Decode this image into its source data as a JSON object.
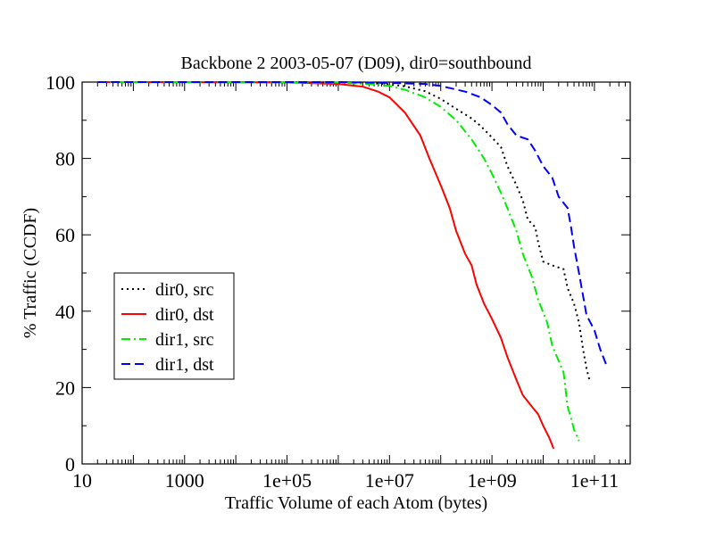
{
  "chart_data": {
    "type": "line",
    "title": "Backbone 2 2003-05-07 (D09), dir0=southbound",
    "xlabel": "Traffic Volume of each Atom (bytes)",
    "ylabel": "% Traffic (CCDF)",
    "x_scale": "log",
    "xlim": [
      10,
      500000000000
    ],
    "ylim": [
      0,
      100
    ],
    "x_ticks": [
      "10",
      "1000",
      "1e+05",
      "1e+07",
      "1e+09",
      "1e+11"
    ],
    "y_ticks": [
      "0",
      "20",
      "40",
      "60",
      "80",
      "100"
    ],
    "grid": false,
    "legend_position": "left-middle",
    "series": [
      {
        "name": "dir0, src",
        "color": "#000000",
        "style": "dotted",
        "points": [
          [
            20,
            100
          ],
          [
            100000.0,
            100
          ],
          [
            1000000.0,
            99.9
          ],
          [
            5000000.0,
            99.7
          ],
          [
            10000000.0,
            99.4
          ],
          [
            20000000.0,
            98.9
          ],
          [
            50000000.0,
            97.6
          ],
          [
            100000000.0,
            95.6
          ],
          [
            200000000.0,
            93
          ],
          [
            400000000.0,
            90.5
          ],
          [
            600000000.0,
            88.5
          ],
          [
            1000000000.0,
            85.5
          ],
          [
            1500000000.0,
            83
          ],
          [
            2000000000.0,
            78
          ],
          [
            3000000000.0,
            73
          ],
          [
            4000000000.0,
            69
          ],
          [
            5000000000.0,
            64
          ],
          [
            7000000000.0,
            62
          ],
          [
            8000000000.0,
            58
          ],
          [
            10000000000.0,
            53
          ],
          [
            15000000000.0,
            52
          ],
          [
            25000000000.0,
            51
          ],
          [
            30000000000.0,
            46
          ],
          [
            40000000000.0,
            42
          ],
          [
            50000000000.0,
            37
          ],
          [
            60000000000.0,
            30
          ],
          [
            70000000000.0,
            25
          ],
          [
            80000000000.0,
            22
          ]
        ]
      },
      {
        "name": "dir0, dst",
        "color": "#ff0000",
        "style": "solid",
        "points": [
          [
            20,
            100
          ],
          [
            100000.0,
            99.9
          ],
          [
            1000000.0,
            99.5
          ],
          [
            3000000.0,
            98.8
          ],
          [
            6000000.0,
            97.5
          ],
          [
            10000000.0,
            96
          ],
          [
            20000000.0,
            92
          ],
          [
            40000000.0,
            86
          ],
          [
            60000000.0,
            80
          ],
          [
            100000000.0,
            73
          ],
          [
            150000000.0,
            67
          ],
          [
            200000000.0,
            61
          ],
          [
            300000000.0,
            55
          ],
          [
            400000000.0,
            52
          ],
          [
            500000000.0,
            47
          ],
          [
            700000000.0,
            42
          ],
          [
            1000000000.0,
            38
          ],
          [
            1500000000.0,
            33
          ],
          [
            2000000000.0,
            28
          ],
          [
            3000000000.0,
            22
          ],
          [
            4000000000.0,
            18
          ],
          [
            6000000000.0,
            15
          ],
          [
            8000000000.0,
            13
          ],
          [
            10000000000.0,
            10
          ],
          [
            13000000000.0,
            7
          ],
          [
            16000000000.0,
            4
          ]
        ]
      },
      {
        "name": "dir1, src",
        "color": "#00ee00",
        "style": "dashdot",
        "points": [
          [
            20,
            100
          ],
          [
            1000000.0,
            99.9
          ],
          [
            5000000.0,
            99.4
          ],
          [
            10000000.0,
            99
          ],
          [
            20000000.0,
            98
          ],
          [
            50000000.0,
            96
          ],
          [
            100000000.0,
            93.5
          ],
          [
            200000000.0,
            90
          ],
          [
            400000000.0,
            85
          ],
          [
            700000000.0,
            80
          ],
          [
            1000000000.0,
            76
          ],
          [
            1500000000.0,
            71
          ],
          [
            2000000000.0,
            67
          ],
          [
            3000000000.0,
            61
          ],
          [
            4000000000.0,
            55
          ],
          [
            6000000000.0,
            49
          ],
          [
            8000000000.0,
            43
          ],
          [
            12000000000.0,
            37
          ],
          [
            15000000000.0,
            31
          ],
          [
            20000000000.0,
            27
          ],
          [
            25000000000.0,
            24
          ],
          [
            30000000000.0,
            15
          ],
          [
            35000000000.0,
            12
          ],
          [
            40000000000.0,
            9
          ],
          [
            50000000000.0,
            6
          ]
        ]
      },
      {
        "name": "dir1, dst",
        "color": "#0000ff",
        "style": "dashed",
        "points": [
          [
            20,
            100
          ],
          [
            1000000.0,
            100
          ],
          [
            10000000.0,
            99.8
          ],
          [
            50000000.0,
            99.5
          ],
          [
            100000000.0,
            99
          ],
          [
            300000000.0,
            97.5
          ],
          [
            600000000.0,
            96
          ],
          [
            1000000000.0,
            94
          ],
          [
            1500000000.0,
            92
          ],
          [
            2000000000.0,
            89
          ],
          [
            3000000000.0,
            86
          ],
          [
            5000000000.0,
            85
          ],
          [
            7000000000.0,
            82
          ],
          [
            10000000000.0,
            78
          ],
          [
            15000000000.0,
            75
          ],
          [
            20000000000.0,
            70
          ],
          [
            30000000000.0,
            67
          ],
          [
            35000000000.0,
            62
          ],
          [
            40000000000.0,
            57
          ],
          [
            50000000000.0,
            50
          ],
          [
            60000000000.0,
            44
          ],
          [
            70000000000.0,
            39
          ],
          [
            100000000000.0,
            35
          ],
          [
            130000000000.0,
            30
          ],
          [
            170000000000.0,
            26
          ]
        ]
      }
    ]
  }
}
